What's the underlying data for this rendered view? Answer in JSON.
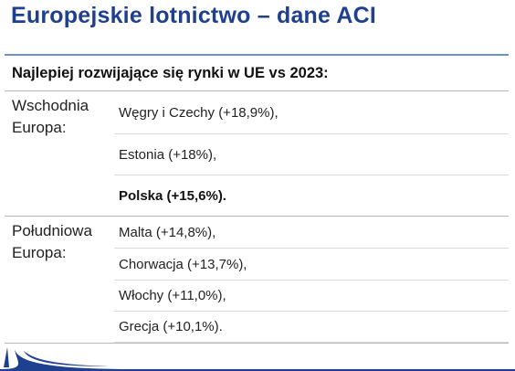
{
  "title": "Europejskie lotnictwo – dane ACI",
  "header": "Najlepiej rozwijające się rynki w UE vs 2023:",
  "groups": [
    {
      "label": "Wschodnia\nEuropa:",
      "entries": [
        "Węgry i Czechy (+18,9%),",
        "Estonia (+18%),",
        "Polska (+15,6%)."
      ]
    },
    {
      "label": "Południowa\nEuropa:",
      "entries": [
        "Malta (+14,8%),",
        "Chorwacja (+13,7%),",
        "Włochy (+11,0%),",
        "Grecja (+10,1%)."
      ]
    }
  ],
  "colors": {
    "title": "#1f3f8f",
    "accent_rule": "#6f8fc9",
    "logo": "#1f3f8f"
  },
  "logo_icon": "swoosh-logo-icon"
}
